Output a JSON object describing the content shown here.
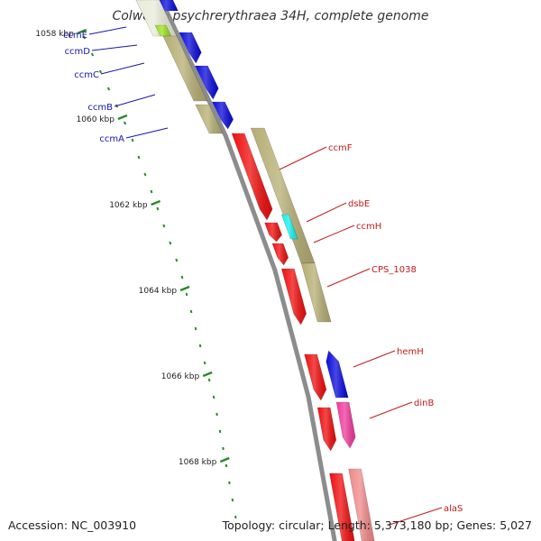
{
  "title": "Colwellia psychrerythraea 34H, complete genome",
  "accession": "Accession: NC_003910",
  "topology": "Topology: circular; Length: 5,373,180 bp; Genes: 5,027",
  "colors": {
    "backbone": "#8c8c8c",
    "tick": "#2a8a2a",
    "left_label": "#1515b0",
    "right_label": "#c41a1a",
    "gene_blue": "#0a0adc",
    "gene_red": "#f00c0c",
    "gene_tan": "#b5ad72",
    "gene_cyan": "#10f0f0",
    "gene_green": "#99e01a",
    "gene_magenta": "#f0389c",
    "gene_pink": "#f08888"
  },
  "scale_labels": [
    "1058 kbp",
    "1060 kbp",
    "1062 kbp",
    "1064 kbp",
    "1066 kbp",
    "1068 kbp"
  ],
  "left_genes": [
    "ccmE",
    "ccmD",
    "ccmC",
    "ccmB",
    "ccmA"
  ],
  "right_genes": [
    "ccmF",
    "dsbE",
    "ccmH",
    "CPS_1038",
    "hemH",
    "dinB",
    "alaS"
  ]
}
